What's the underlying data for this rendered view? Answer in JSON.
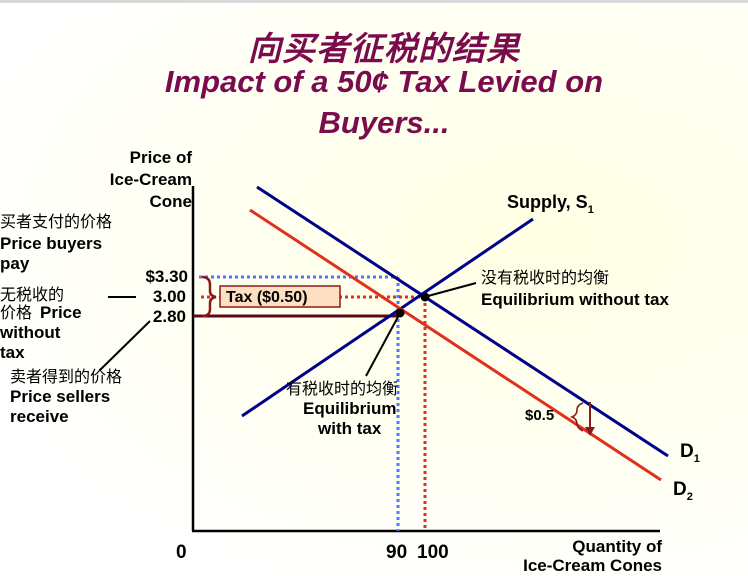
{
  "title": {
    "cn": "向买者征税的结果",
    "en_line1": "Impact of a 50¢ Tax Levied on",
    "en_line2": "Buyers..."
  },
  "colors": {
    "title": "#7a0c4e",
    "supply_and_d1": "#00008b",
    "d2": "#e0301e",
    "buyers_price_guides": "#4a78ff",
    "tax_bracket": "#8b1a1a"
  },
  "axes": {
    "y_label_line1": "Price of",
    "y_label_line2": "Ice-Cream",
    "y_label_line3": "Cone",
    "x_label_line1": "Quantity of",
    "x_label_line2": "Ice-Cream Cones",
    "origin": "0",
    "x_tick_90": "90",
    "x_tick_100": "100"
  },
  "prices": {
    "buyers_pay": "$3.30",
    "no_tax": "3.00",
    "sellers_receive": "2.80"
  },
  "curves": {
    "supply": "Supply, S",
    "supply_sub": "1",
    "d1": "D",
    "d1_sub": "1",
    "d2": "D",
    "d2_sub": "2"
  },
  "annotations": {
    "tax_box": "Tax ($0.50)",
    "shift_amount": "$0.5",
    "buyers_pay_cn": "买者支付的价格",
    "buyers_pay_en1": "Price buyers",
    "buyers_pay_en2": "pay",
    "no_tax_cn1": "无税收的",
    "no_tax_cn2": "价格",
    "no_tax_en1": "Price",
    "no_tax_en2": "without",
    "no_tax_en3": "tax",
    "sellers_cn": "卖者得到的价格",
    "sellers_en1": "Price sellers",
    "sellers_en2": "receive",
    "eq_no_tax_cn": "没有税收时的均衡",
    "eq_no_tax_en": "Equilibrium without tax",
    "eq_tax_cn": "有税收时的均衡",
    "eq_tax_en1": "Equilibrium",
    "eq_tax_en2": "with tax"
  }
}
